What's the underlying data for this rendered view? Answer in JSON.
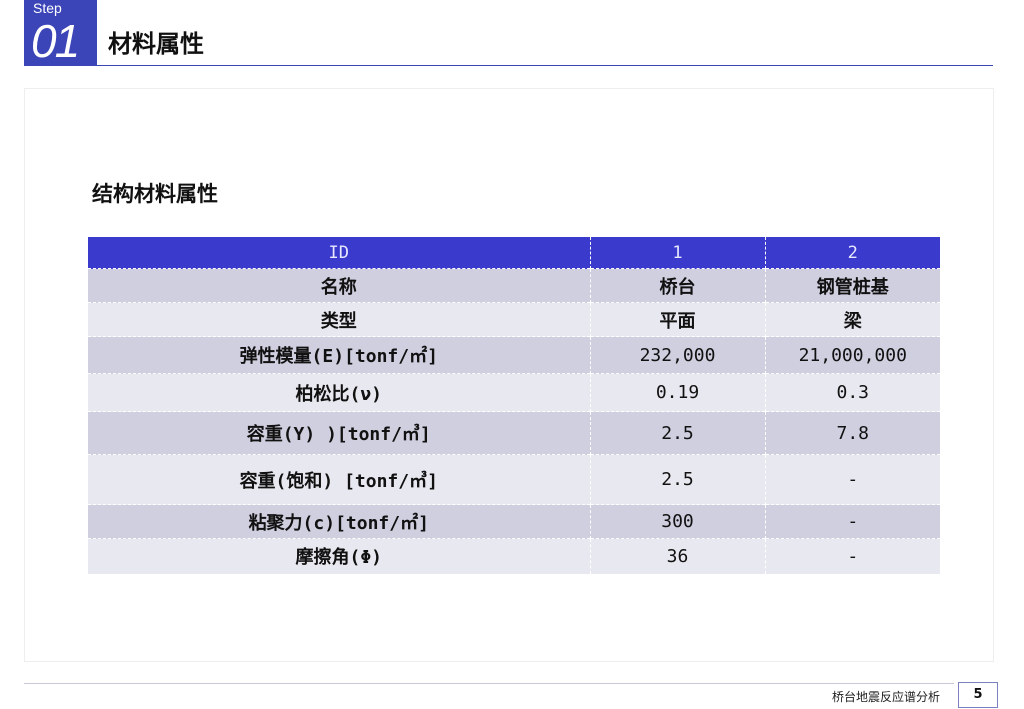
{
  "header": {
    "step_word": "Step",
    "step_number": "01",
    "title": "材料属性"
  },
  "section": {
    "title": "结构材料属性"
  },
  "table": {
    "header": [
      "ID",
      "1",
      "2"
    ],
    "rows": [
      [
        "名称",
        "桥台",
        "钢管桩基"
      ],
      [
        "类型",
        "平面",
        "梁"
      ],
      [
        "弹性模量(E)[tonf/㎡]",
        "232,000",
        "21,000,000"
      ],
      [
        "柏松比(ν)",
        "0.19",
        "0.3"
      ],
      [
        "容重(Y) )[tonf/㎥]",
        "2.5",
        "7.8"
      ],
      [
        "容重(饱和) [tonf/㎥]",
        "2.5",
        "-"
      ],
      [
        "粘聚力(c)[tonf/㎡]",
        "300",
        "-"
      ],
      [
        "摩擦角(Φ)",
        "36",
        "-"
      ]
    ]
  },
  "footer": {
    "text": "桥台地震反应谱分析",
    "page": "5"
  },
  "colors": {
    "accent": "#3b45b8",
    "table_header": "#3a3acd",
    "row_dark": "#cfcfe0",
    "row_light": "#e8e8f0"
  }
}
